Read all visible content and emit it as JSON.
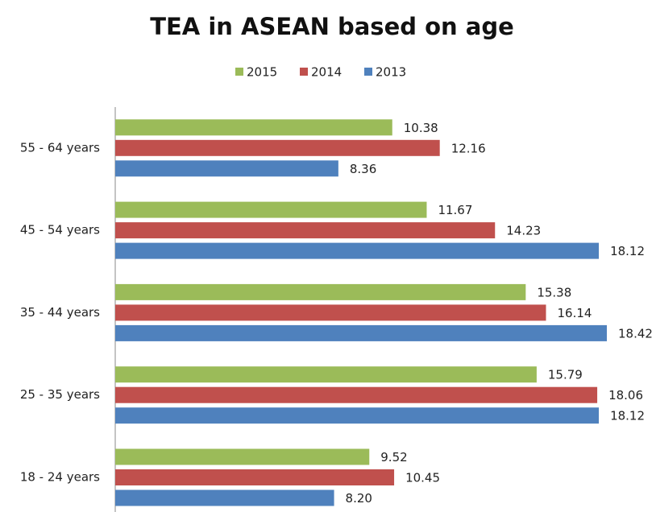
{
  "chart_data": {
    "type": "hbar",
    "title": "TEA in ASEAN based on age",
    "categories": [
      "18 - 24 years",
      "25 - 35 years",
      "35 - 44 years",
      "45 - 54 years",
      "55 - 64 years"
    ],
    "series": [
      {
        "name": "2015",
        "color": "#9bbb59",
        "values": [
          9.52,
          15.79,
          15.38,
          11.67,
          10.38
        ],
        "value_labels": [
          "9.52",
          "15.79",
          "15.38",
          "11.67",
          "10.38"
        ]
      },
      {
        "name": "2014",
        "color": "#c0504d",
        "values": [
          10.45,
          18.06,
          16.14,
          14.23,
          12.16
        ],
        "value_labels": [
          "10.45",
          "18.06",
          "16.14",
          "14.23",
          "12.16"
        ]
      },
      {
        "name": "2013",
        "color": "#4f81bd",
        "values": [
          8.2,
          18.12,
          18.42,
          18.12,
          8.36
        ],
        "value_labels": [
          "8.20",
          "18.12",
          "18.42",
          "18.12",
          "8.36"
        ]
      }
    ],
    "legend": "top"
  }
}
